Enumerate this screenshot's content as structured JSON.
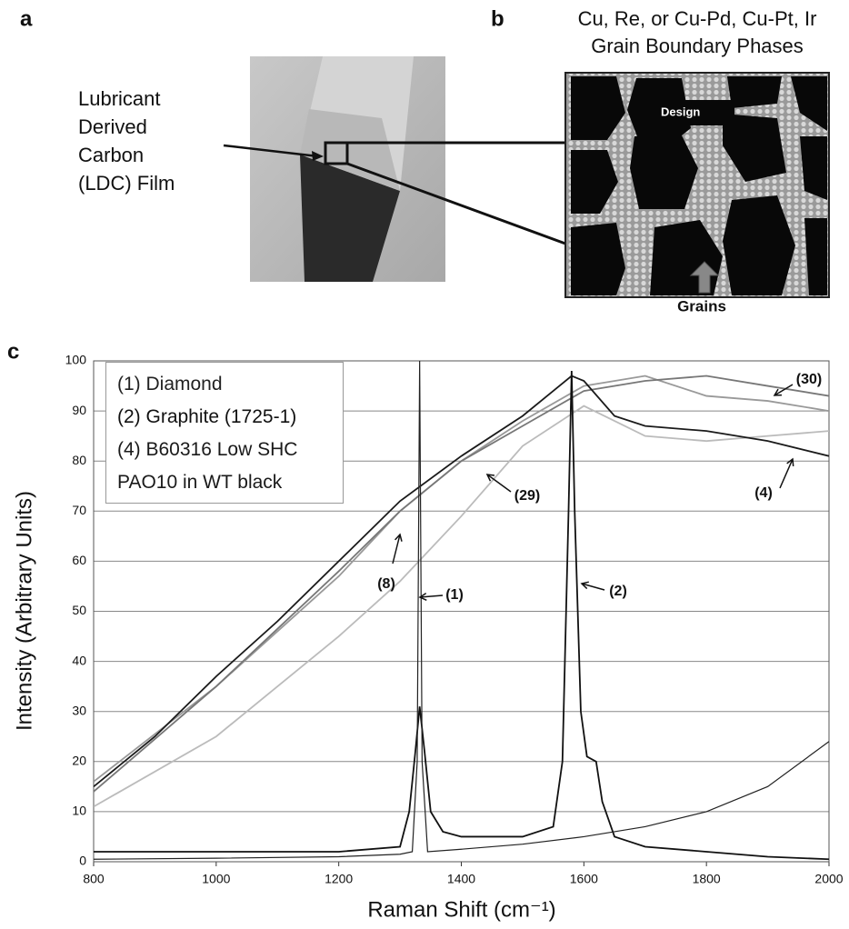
{
  "panels": {
    "a": {
      "label": "a",
      "caption": [
        "Lubricant",
        "Derived",
        "Carbon",
        "(LDC) Film"
      ]
    },
    "b": {
      "label": "b",
      "title": [
        "Cu, Re, or Cu-Pd, Cu-Pt, Ir",
        "Grain Boundary Phases"
      ],
      "inset_label": "Design",
      "arrow_label": "Grains"
    }
  },
  "chart_data": {
    "type": "line",
    "panel_label": "c",
    "x_label": "Raman Shift (cm⁻¹)",
    "y_label": "Intensity (Arbitrary Units)",
    "xlim": [
      800,
      2000
    ],
    "xticks": [
      800,
      1000,
      1200,
      1400,
      1600,
      1800,
      2000
    ],
    "ylim": [
      0,
      100
    ],
    "yticks": [
      0,
      10,
      20,
      30,
      40,
      50,
      60,
      70,
      80,
      90,
      100
    ],
    "grid": true,
    "series": [
      {
        "name": "(1) Diamond",
        "color": "#222222",
        "x": [
          800,
          1000,
          1200,
          1300,
          1320,
          1328,
          1332,
          1336,
          1345,
          1400,
          1500,
          1600,
          1700,
          1800,
          1900,
          2000
        ],
        "values": [
          0.5,
          0.7,
          1,
          1.5,
          2,
          20,
          100,
          20,
          2,
          2.5,
          3.5,
          5,
          7,
          10,
          15,
          24
        ]
      },
      {
        "name": "(2) Graphite (1725-1)",
        "color": "#111111",
        "x": [
          800,
          1000,
          1200,
          1300,
          1315,
          1325,
          1332,
          1340,
          1350,
          1370,
          1400,
          1500,
          1550,
          1565,
          1575,
          1580,
          1585,
          1595,
          1605,
          1620,
          1630,
          1650,
          1700,
          1800,
          1900,
          2000
        ],
        "values": [
          2,
          2,
          2,
          3,
          10,
          22,
          31,
          22,
          10,
          6,
          5,
          5,
          7,
          20,
          70,
          98,
          70,
          30,
          21,
          20,
          12,
          5,
          3,
          2,
          1,
          0.5
        ]
      },
      {
        "name": "(4) B60316 Low SHC PAO10 in WT black",
        "color": "#1a1a1a",
        "x": [
          800,
          900,
          1000,
          1100,
          1200,
          1300,
          1400,
          1500,
          1550,
          1580,
          1600,
          1650,
          1700,
          1800,
          1900,
          2000
        ],
        "values": [
          15,
          25,
          37,
          48,
          60,
          72,
          81,
          89,
          94,
          97,
          96,
          89,
          87,
          86,
          84,
          81
        ]
      },
      {
        "color": "#777777",
        "x": [
          800,
          1000,
          1200,
          1300,
          1400,
          1500,
          1600,
          1700,
          1800,
          1900,
          2000
        ],
        "values": [
          14,
          35,
          58,
          70,
          80,
          87,
          94,
          96,
          97,
          95,
          93
        ]
      },
      {
        "color": "#bbbbbb",
        "x": [
          800,
          1000,
          1200,
          1300,
          1400,
          1500,
          1600,
          1650,
          1700,
          1800,
          1900,
          2000
        ],
        "values": [
          11,
          25,
          45,
          56,
          69,
          83,
          91,
          88,
          85,
          84,
          85,
          86
        ]
      },
      {
        "color": "#999999",
        "x": [
          800,
          1000,
          1200,
          1300,
          1400,
          1500,
          1600,
          1700,
          1800,
          1900,
          2000
        ],
        "values": [
          16,
          35,
          57,
          70,
          80,
          88,
          95,
          97,
          93,
          92,
          90
        ]
      }
    ],
    "annotations": [
      "(1)",
      "(2)",
      "(8)",
      "(29)",
      "(30)",
      "(4)"
    ]
  }
}
